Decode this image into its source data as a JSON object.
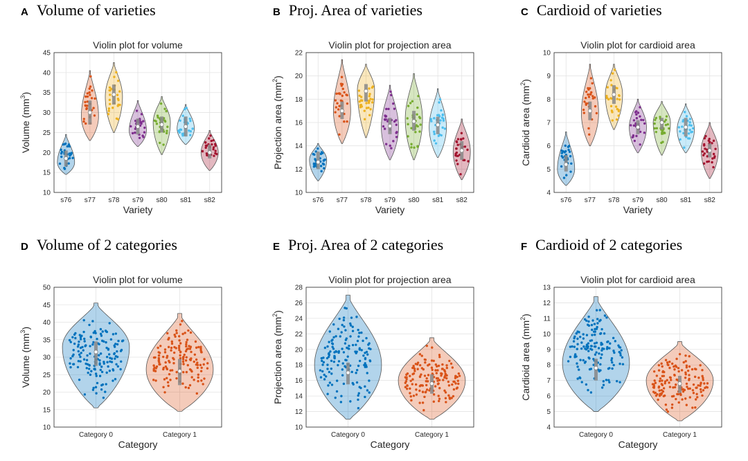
{
  "chart_data": [
    {
      "panel_letter": "A",
      "panel_title": "Volume of varieties",
      "type": "violin",
      "title": "Violin plot for volume",
      "xlabel": "Variety",
      "ylabel": "Volume (mm",
      "ylabel_sup": "3",
      "ylabel_end": ")",
      "ylim": [
        10,
        45
      ],
      "yticks": [
        10,
        15,
        20,
        25,
        30,
        35,
        40,
        45
      ],
      "grid": true,
      "categories": [
        "s76",
        "s77",
        "s78",
        "s79",
        "s80",
        "s81",
        "s82"
      ],
      "colors": [
        "#0072BD",
        "#D95319",
        "#EDB120",
        "#7E2F8E",
        "#77AC30",
        "#4DBEEE",
        "#A2142F"
      ],
      "series": [
        {
          "min": 14.5,
          "max": 24.5,
          "median": 18.5,
          "q1": 16.5,
          "q3": 20.5,
          "peak": 17.5
        },
        {
          "min": 23.0,
          "max": 40.5,
          "median": 30.0,
          "q1": 27.0,
          "q3": 33.0,
          "peak": 29.0
        },
        {
          "min": 25.0,
          "max": 42.5,
          "median": 34.5,
          "q1": 32.0,
          "q3": 37.0,
          "peak": 34.0
        },
        {
          "min": 21.5,
          "max": 33.0,
          "median": 26.5,
          "q1": 24.5,
          "q3": 28.5,
          "peak": 25.5
        },
        {
          "min": 19.5,
          "max": 34.0,
          "median": 27.0,
          "q1": 25.0,
          "q3": 29.0,
          "peak": 27.5
        },
        {
          "min": 22.0,
          "max": 32.0,
          "median": 26.5,
          "q1": 24.0,
          "q3": 29.0,
          "peak": 26.0
        },
        {
          "min": 15.5,
          "max": 25.5,
          "median": 20.0,
          "q1": 18.5,
          "q3": 22.0,
          "peak": 20.0
        }
      ]
    },
    {
      "panel_letter": "B",
      "panel_title": "Proj. Area of varieties",
      "type": "violin",
      "title": "Violin plot for projection area",
      "xlabel": "Variety",
      "ylabel": "Projection area (mm",
      "ylabel_sup": "2",
      "ylabel_end": ")",
      "ylim": [
        10,
        22
      ],
      "yticks": [
        10,
        12,
        14,
        16,
        18,
        20,
        22
      ],
      "grid": true,
      "categories": [
        "s76",
        "s77",
        "s78",
        "s79",
        "s80",
        "s81",
        "s82"
      ],
      "colors": [
        "#0072BD",
        "#D95319",
        "#EDB120",
        "#7E2F8E",
        "#77AC30",
        "#4DBEEE",
        "#A2142F"
      ],
      "series": [
        {
          "min": 11.0,
          "max": 14.2,
          "median": 12.6,
          "q1": 12.0,
          "q3": 13.5,
          "peak": 12.8
        },
        {
          "min": 14.2,
          "max": 21.4,
          "median": 17.0,
          "q1": 16.3,
          "q3": 17.8,
          "peak": 17.0
        },
        {
          "min": 14.7,
          "max": 21.0,
          "median": 18.7,
          "q1": 17.8,
          "q3": 19.3,
          "peak": 18.8
        },
        {
          "min": 12.8,
          "max": 19.2,
          "median": 15.7,
          "q1": 15.0,
          "q3": 16.4,
          "peak": 15.6
        },
        {
          "min": 12.8,
          "max": 20.2,
          "median": 16.1,
          "q1": 15.3,
          "q3": 17.0,
          "peak": 16.3
        },
        {
          "min": 13.0,
          "max": 18.9,
          "median": 15.8,
          "q1": 15.0,
          "q3": 16.5,
          "peak": 15.6
        },
        {
          "min": 11.1,
          "max": 16.3,
          "median": 13.6,
          "q1": 12.8,
          "q3": 14.4,
          "peak": 13.5
        }
      ]
    },
    {
      "panel_letter": "C",
      "panel_title": "Cardioid of varieties",
      "type": "violin",
      "title": "Violin plot for cardioid area",
      "xlabel": "Variety",
      "ylabel": "Cardioid area (mm",
      "ylabel_sup": "2",
      "ylabel_end": ")",
      "ylim": [
        4,
        10
      ],
      "yticks": [
        4,
        5,
        6,
        7,
        8,
        9,
        10
      ],
      "grid": true,
      "categories": [
        "s76",
        "s77",
        "s78",
        "s79",
        "s80",
        "s81",
        "s82"
      ],
      "colors": [
        "#0072BD",
        "#D95319",
        "#EDB120",
        "#7E2F8E",
        "#77AC30",
        "#4DBEEE",
        "#A2142F"
      ],
      "series": [
        {
          "min": 4.3,
          "max": 6.6,
          "median": 5.2,
          "q1": 4.9,
          "q3": 5.6,
          "peak": 5.0
        },
        {
          "min": 6.0,
          "max": 9.5,
          "median": 7.5,
          "q1": 7.1,
          "q3": 7.9,
          "peak": 7.4
        },
        {
          "min": 6.7,
          "max": 9.5,
          "median": 8.2,
          "q1": 7.8,
          "q3": 8.6,
          "peak": 8.2
        },
        {
          "min": 5.7,
          "max": 8.0,
          "median": 6.8,
          "q1": 6.5,
          "q3": 7.1,
          "peak": 6.8
        },
        {
          "min": 5.6,
          "max": 7.9,
          "median": 7.0,
          "q1": 6.7,
          "q3": 7.2,
          "peak": 7.0
        },
        {
          "min": 5.7,
          "max": 7.8,
          "median": 6.8,
          "q1": 6.4,
          "q3": 7.2,
          "peak": 6.7
        },
        {
          "min": 4.6,
          "max": 7.0,
          "median": 5.8,
          "q1": 5.5,
          "q3": 6.1,
          "peak": 5.8
        }
      ]
    },
    {
      "panel_letter": "D",
      "panel_title": "Volume of 2 categories",
      "type": "violin",
      "title": "Violin plot for volume",
      "xlabel": "Category",
      "ylabel": "Volume (mm",
      "ylabel_sup": "3",
      "ylabel_end": ")",
      "ylim": [
        10,
        50
      ],
      "yticks": [
        10,
        15,
        20,
        25,
        30,
        35,
        40,
        45,
        50
      ],
      "grid": true,
      "categories": [
        "Category 0",
        "Category 1"
      ],
      "colors": [
        "#0072BD",
        "#D95319"
      ],
      "series": [
        {
          "min": 15.5,
          "max": 45.5,
          "median": 31.5,
          "q1": 27.5,
          "q3": 34.5,
          "peak": 33.0
        },
        {
          "min": 14.5,
          "max": 42.5,
          "median": 26.0,
          "q1": 22.0,
          "q3": 29.5,
          "peak": 26.5
        }
      ]
    },
    {
      "panel_letter": "E",
      "panel_title": "Proj. Area of 2 categories",
      "type": "violin",
      "title": "Violin plot for projection area",
      "xlabel": "Category",
      "ylabel": "Projection area (mm",
      "ylabel_sup": "2",
      "ylabel_end": ")",
      "ylim": [
        10,
        28
      ],
      "yticks": [
        10,
        12,
        14,
        16,
        18,
        20,
        22,
        24,
        26,
        28
      ],
      "grid": true,
      "categories": [
        "Category 0",
        "Category 1"
      ],
      "colors": [
        "#0072BD",
        "#D95319"
      ],
      "series": [
        {
          "min": 11.0,
          "max": 27.0,
          "median": 17.0,
          "q1": 15.5,
          "q3": 18.3,
          "peak": 18.0
        },
        {
          "min": 11.0,
          "max": 21.5,
          "median": 15.6,
          "q1": 14.3,
          "q3": 16.8,
          "peak": 16.0
        }
      ]
    },
    {
      "panel_letter": "F",
      "panel_title": "Cardioid of 2 categories",
      "type": "violin",
      "title": "Violin plot for cardioid area",
      "xlabel": "Category",
      "ylabel": "Cardioid area (mm",
      "ylabel_sup": "2",
      "ylabel_end": ")",
      "ylim": [
        4,
        13
      ],
      "yticks": [
        4,
        5,
        6,
        7,
        8,
        9,
        10,
        11,
        12,
        13
      ],
      "grid": true,
      "categories": [
        "Category 0",
        "Category 1"
      ],
      "colors": [
        "#0072BD",
        "#D95319"
      ],
      "series": [
        {
          "min": 5.0,
          "max": 12.4,
          "median": 7.8,
          "q1": 7.0,
          "q3": 8.4,
          "peak": 8.1
        },
        {
          "min": 4.4,
          "max": 9.5,
          "median": 6.8,
          "q1": 6.2,
          "q3": 7.3,
          "peak": 7.0
        }
      ]
    }
  ]
}
